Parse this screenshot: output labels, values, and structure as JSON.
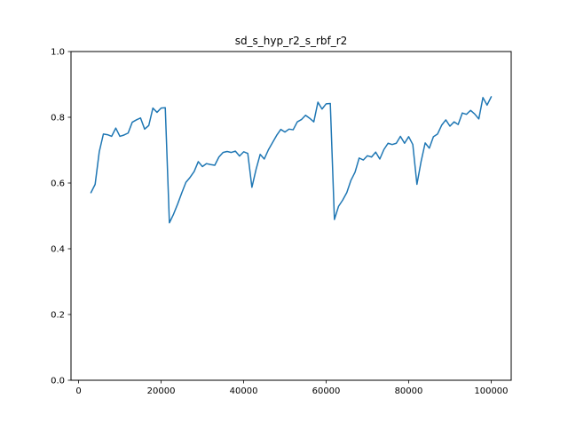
{
  "chart_data": {
    "type": "line",
    "title": "sd_s_hyp_r2_s_rbf_r2",
    "xlabel": "",
    "ylabel": "",
    "xlim": [
      -1850,
      104850
    ],
    "ylim": [
      0.0,
      1.0
    ],
    "xticks": [
      0,
      20000,
      40000,
      60000,
      80000,
      100000
    ],
    "xtick_labels": [
      "0",
      "20000",
      "40000",
      "60000",
      "80000",
      "100000"
    ],
    "yticks": [
      0.0,
      0.2,
      0.4,
      0.6,
      0.8,
      1.0
    ],
    "ytick_labels": [
      "0.0",
      "0.2",
      "0.4",
      "0.6",
      "0.8",
      "1.0"
    ],
    "grid": false,
    "legend": "none",
    "series": [
      {
        "color": "#1f77b4",
        "x": [
          3000,
          4000,
          5000,
          6000,
          7000,
          8000,
          9000,
          10000,
          11000,
          12000,
          13000,
          14000,
          15000,
          16000,
          17000,
          18000,
          19000,
          20000,
          21000,
          22000,
          23000,
          24000,
          25000,
          26000,
          27000,
          28000,
          29000,
          30000,
          31000,
          32000,
          33000,
          34000,
          35000,
          36000,
          37000,
          38000,
          39000,
          40000,
          41000,
          42000,
          43000,
          44000,
          45000,
          46000,
          47000,
          48000,
          49000,
          50000,
          51000,
          52000,
          53000,
          54000,
          55000,
          56000,
          57000,
          58000,
          59000,
          60000,
          61000,
          62000,
          63000,
          64000,
          65000,
          66000,
          67000,
          68000,
          69000,
          70000,
          71000,
          72000,
          73000,
          74000,
          75000,
          76000,
          77000,
          78000,
          79000,
          80000,
          81000,
          82000,
          83000,
          84000,
          85000,
          86000,
          87000,
          88000,
          89000,
          90000,
          91000,
          92000,
          93000,
          94000,
          95000,
          96000,
          97000,
          98000,
          99000,
          100000
        ],
        "values": [
          0.571,
          0.596,
          0.695,
          0.749,
          0.747,
          0.742,
          0.767,
          0.742,
          0.746,
          0.752,
          0.785,
          0.792,
          0.798,
          0.764,
          0.775,
          0.828,
          0.815,
          0.828,
          0.829,
          0.479,
          0.505,
          0.536,
          0.57,
          0.602,
          0.617,
          0.635,
          0.665,
          0.65,
          0.659,
          0.656,
          0.654,
          0.679,
          0.693,
          0.696,
          0.693,
          0.697,
          0.682,
          0.695,
          0.69,
          0.587,
          0.641,
          0.687,
          0.673,
          0.701,
          0.723,
          0.745,
          0.763,
          0.755,
          0.764,
          0.762,
          0.786,
          0.793,
          0.806,
          0.797,
          0.786,
          0.846,
          0.825,
          0.841,
          0.842,
          0.489,
          0.529,
          0.548,
          0.571,
          0.608,
          0.633,
          0.676,
          0.67,
          0.683,
          0.679,
          0.694,
          0.673,
          0.702,
          0.721,
          0.717,
          0.721,
          0.742,
          0.721,
          0.741,
          0.717,
          0.596,
          0.665,
          0.722,
          0.706,
          0.741,
          0.749,
          0.776,
          0.792,
          0.773,
          0.786,
          0.778,
          0.813,
          0.809,
          0.821,
          0.81,
          0.795,
          0.86,
          0.837,
          0.862
        ]
      }
    ]
  }
}
